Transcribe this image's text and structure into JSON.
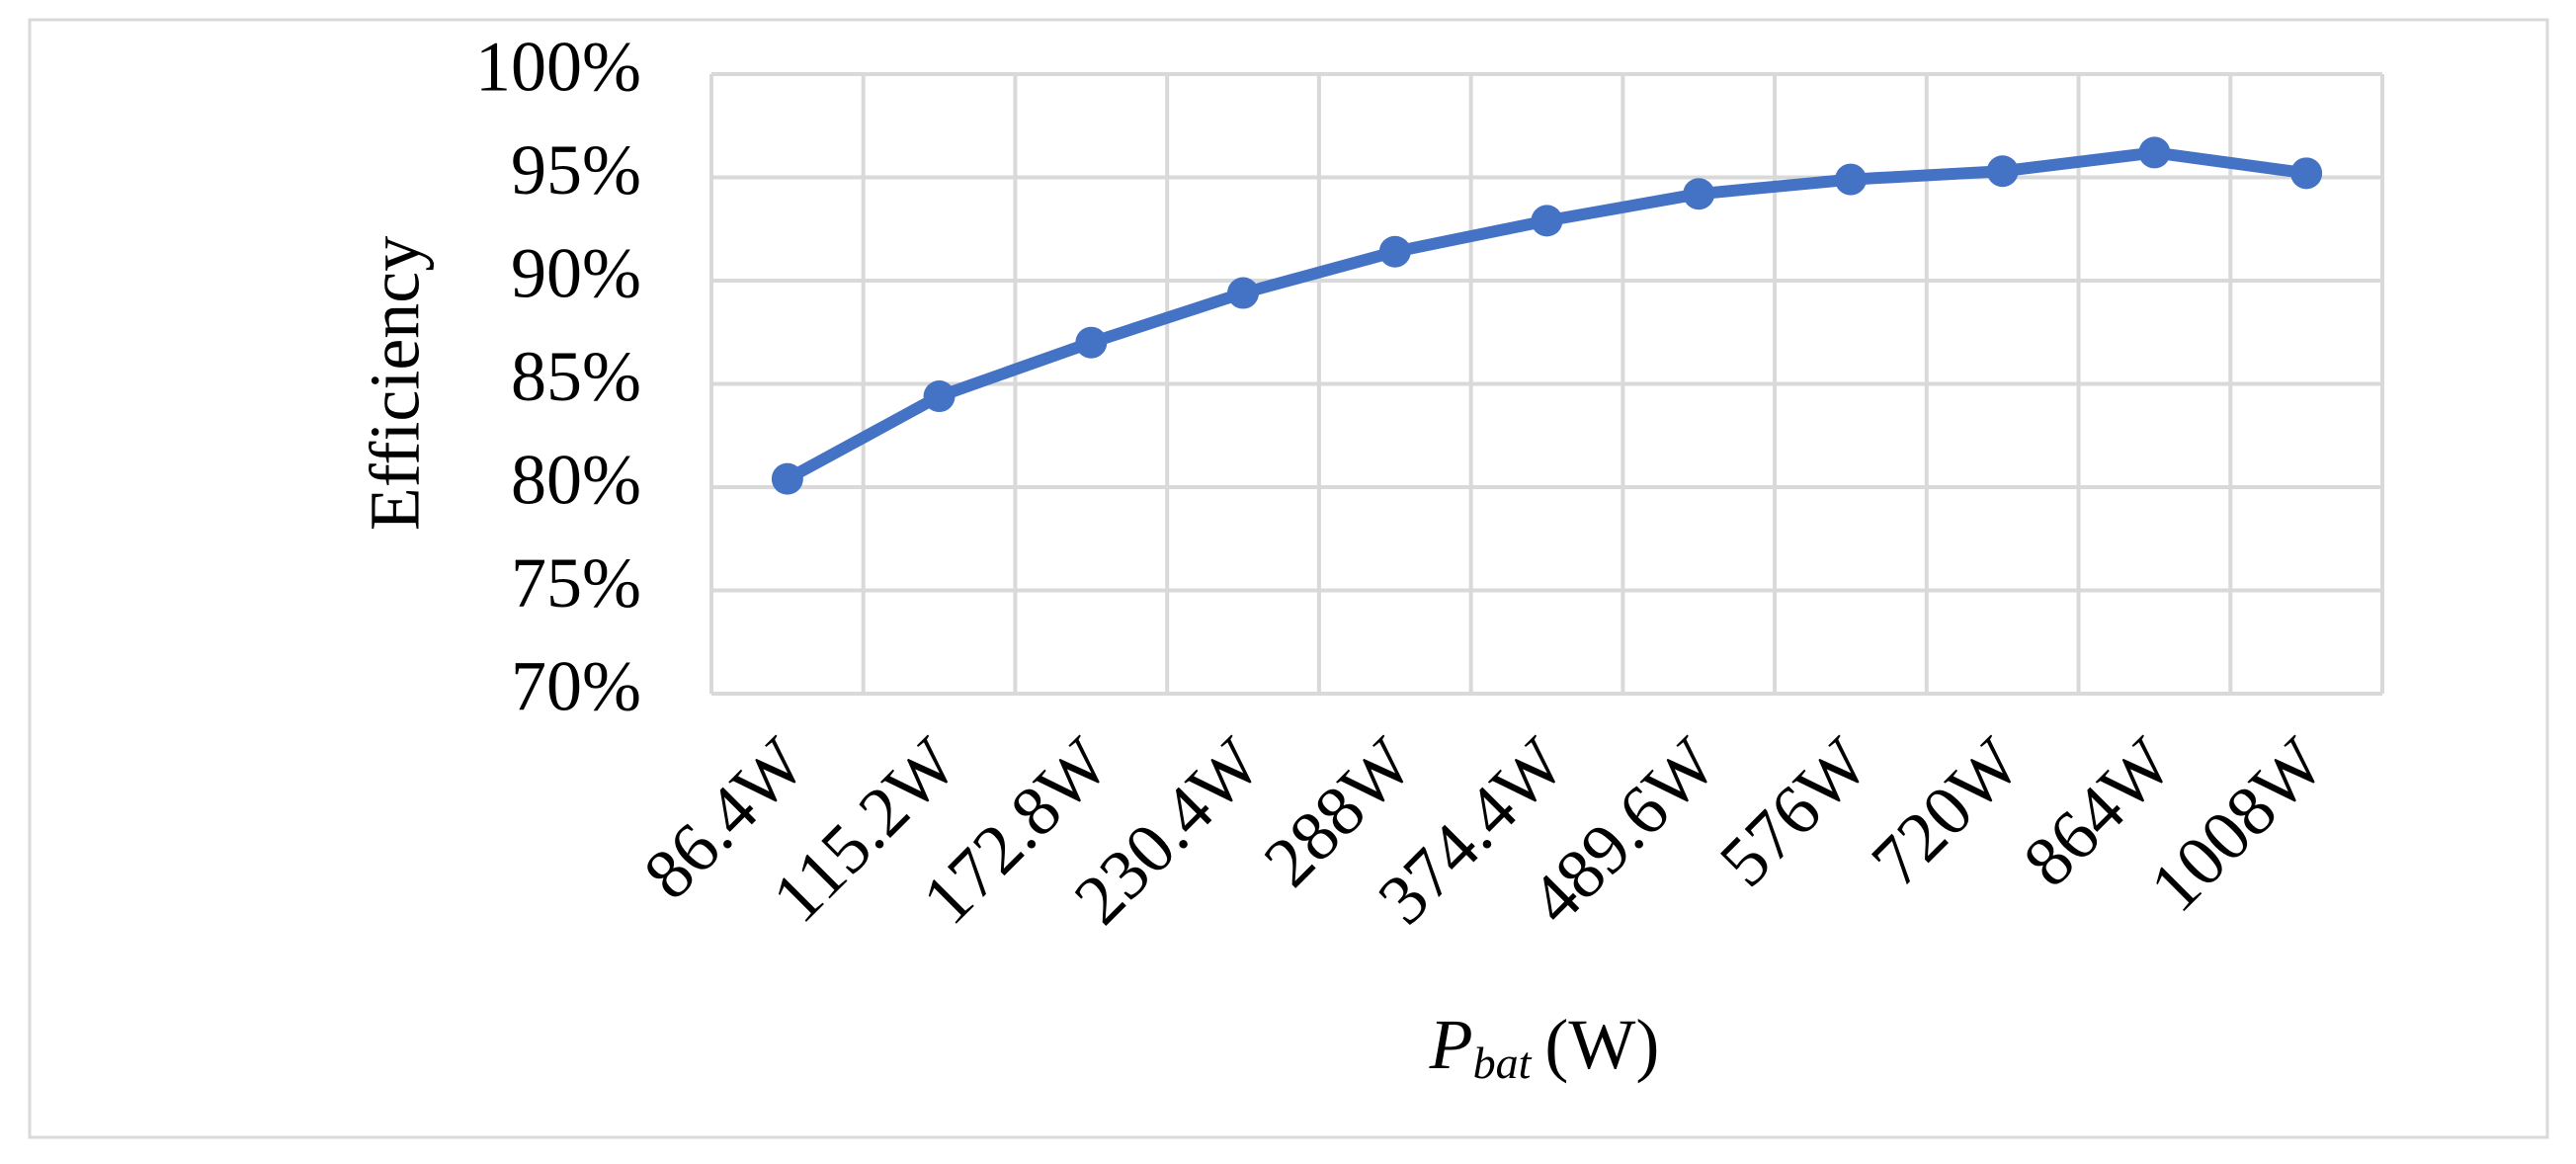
{
  "chart_data": {
    "type": "line",
    "x_label": {
      "symbol": "P",
      "subscript": "bat",
      "unit": "(W)"
    },
    "y_label": "Efficiency",
    "categories": [
      "86.4W",
      "115.2W",
      "172.8W",
      "230.4W",
      "288W",
      "374.4W",
      "489.6W",
      "576W",
      "720W",
      "864W",
      "1008W"
    ],
    "series": [
      {
        "color": "#4472c4",
        "values": [
          80.4,
          84.4,
          87.0,
          89.4,
          91.4,
          92.9,
          94.2,
          94.9,
          95.3,
          96.2,
          95.2
        ]
      }
    ],
    "ylim": [
      70,
      100
    ],
    "yticks": [
      {
        "value": 70,
        "label": "70%"
      },
      {
        "value": 75,
        "label": "75%"
      },
      {
        "value": 80,
        "label": "80%"
      },
      {
        "value": 85,
        "label": "85%"
      },
      {
        "value": 90,
        "label": "90%"
      },
      {
        "value": 95,
        "label": "95%"
      },
      {
        "value": 100,
        "label": "100%"
      }
    ],
    "grid": true
  }
}
